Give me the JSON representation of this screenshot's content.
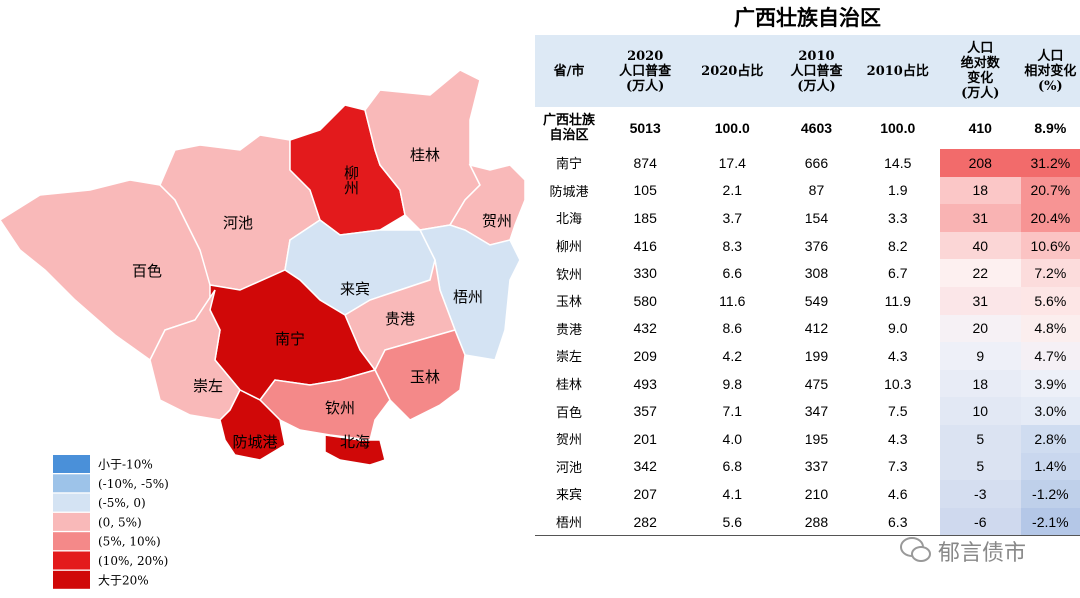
{
  "title": "广西壮族自治区",
  "map": {
    "regions": [
      {
        "name": "百色",
        "color": "#f9b9b9"
      },
      {
        "name": "河池",
        "color": "#f9b9b9"
      },
      {
        "name": "柳州",
        "color": "#e31a1c"
      },
      {
        "name": "桂林",
        "color": "#f9b9b9"
      },
      {
        "name": "贺州",
        "color": "#f9b9b9"
      },
      {
        "name": "梧州",
        "color": "#d4e3f3"
      },
      {
        "name": "来宾",
        "color": "#d4e3f3"
      },
      {
        "name": "贵港",
        "color": "#f9b9b9"
      },
      {
        "name": "玉林",
        "color": "#f48989"
      },
      {
        "name": "南宁",
        "color": "#d00808"
      },
      {
        "name": "崇左",
        "color": "#f9b9b9"
      },
      {
        "name": "钦州",
        "color": "#f48989"
      },
      {
        "name": "防城港",
        "color": "#d00808"
      },
      {
        "name": "北海",
        "color": "#d00808"
      }
    ],
    "legend": [
      {
        "label": "小于-10%",
        "color": "#4a90d9"
      },
      {
        "label": "(-10%, -5%)",
        "color": "#9dc3e9"
      },
      {
        "label": "(-5%, 0)",
        "color": "#d4e3f3"
      },
      {
        "label": "(0, 5%)",
        "color": "#f9b9b9"
      },
      {
        "label": "(5%, 10%)",
        "color": "#f48989"
      },
      {
        "label": "(10%, 20%)",
        "color": "#e31a1c"
      },
      {
        "label": "大于20%",
        "color": "#d00808"
      }
    ]
  },
  "table": {
    "header": [
      "省/市",
      "2020\n人口普查\n(万人)",
      "2020占比",
      "2010\n人口普查\n(万人)",
      "2010占比",
      "人口\n绝对数\n变化\n(万人)",
      "人口\n相对变化\n(%)"
    ],
    "rows": [
      [
        "广西壮族\n自治区",
        "5013",
        "100.0",
        "4603",
        "100.0",
        "410",
        "8.9%"
      ],
      [
        "南宁",
        "874",
        "17.4",
        "666",
        "14.5",
        "208",
        "31.2%"
      ],
      [
        "防城港",
        "105",
        "2.1",
        "87",
        "1.9",
        "18",
        "20.7%"
      ],
      [
        "北海",
        "185",
        "3.7",
        "154",
        "3.3",
        "31",
        "20.4%"
      ],
      [
        "柳州",
        "416",
        "8.3",
        "376",
        "8.2",
        "40",
        "10.6%"
      ],
      [
        "钦州",
        "330",
        "6.6",
        "308",
        "6.7",
        "22",
        "7.2%"
      ],
      [
        "玉林",
        "580",
        "11.6",
        "549",
        "11.9",
        "31",
        "5.6%"
      ],
      [
        "贵港",
        "432",
        "8.6",
        "412",
        "9.0",
        "20",
        "4.8%"
      ],
      [
        "崇左",
        "209",
        "4.2",
        "199",
        "4.3",
        "9",
        "4.7%"
      ],
      [
        "桂林",
        "493",
        "9.8",
        "475",
        "10.3",
        "18",
        "3.9%"
      ],
      [
        "百色",
        "357",
        "7.1",
        "347",
        "7.5",
        "10",
        "3.0%"
      ],
      [
        "贺州",
        "201",
        "4.0",
        "195",
        "4.3",
        "5",
        "2.8%"
      ],
      [
        "河池",
        "342",
        "6.8",
        "337",
        "7.3",
        "5",
        "1.4%"
      ],
      [
        "来宾",
        "207",
        "4.1",
        "210",
        "4.6",
        "-3",
        "-1.2%"
      ],
      [
        "梧州",
        "282",
        "5.6",
        "288",
        "6.3",
        "-6",
        "-2.1%"
      ]
    ],
    "abs_change_colors": [
      null,
      "#f26b6b",
      "#fbc7c7",
      "#f9b3b3",
      "#fbd6d6",
      "#fdf0f0",
      "#fbe6e8",
      "#f6f1f5",
      "#eef0f8",
      "#e8ecf6",
      "#e2e8f4",
      "#dbe3f2",
      "#dbe3f2",
      "#d5def0",
      "#cfd9ee"
    ],
    "rel_change_colors": [
      null,
      "#f26b6b",
      "#f79494",
      "#f79494",
      "#fbc3c3",
      "#fcdcdc",
      "#fde6e6",
      "#fbeeee",
      "#f5f0f5",
      "#edf0f8",
      "#e5ebf6",
      "#cfdcf0",
      "#c9d7ee",
      "#bfd0ea",
      "#b4c7e7"
    ]
  },
  "watermark": "郁言债市"
}
